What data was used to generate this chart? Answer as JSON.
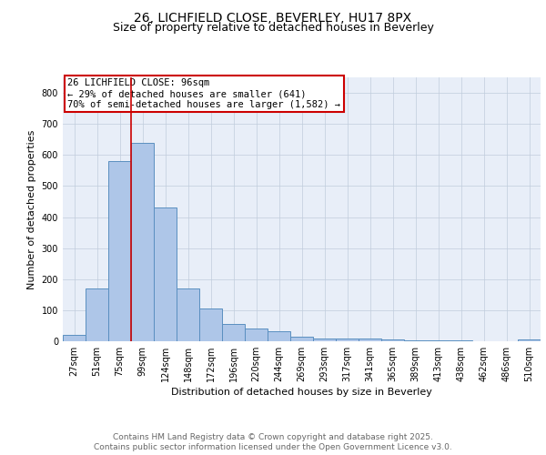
{
  "title1": "26, LICHFIELD CLOSE, BEVERLEY, HU17 8PX",
  "title2": "Size of property relative to detached houses in Beverley",
  "xlabel": "Distribution of detached houses by size in Beverley",
  "ylabel": "Number of detached properties",
  "bar_labels": [
    "27sqm",
    "51sqm",
    "75sqm",
    "99sqm",
    "124sqm",
    "148sqm",
    "172sqm",
    "196sqm",
    "220sqm",
    "244sqm",
    "269sqm",
    "293sqm",
    "317sqm",
    "341sqm",
    "365sqm",
    "389sqm",
    "413sqm",
    "438sqm",
    "462sqm",
    "486sqm",
    "510sqm"
  ],
  "bar_values": [
    20,
    170,
    580,
    640,
    430,
    170,
    105,
    57,
    42,
    33,
    15,
    10,
    9,
    8,
    6,
    4,
    3,
    2,
    1,
    1,
    6
  ],
  "bar_color": "#aec6e8",
  "bar_edge_color": "#5a8fc0",
  "vline_x": 2.5,
  "vline_color": "#cc0000",
  "annotation_line1": "26 LICHFIELD CLOSE: 96sqm",
  "annotation_line2": "← 29% of detached houses are smaller (641)",
  "annotation_line3": "70% of semi-detached houses are larger (1,582) →",
  "annotation_box_color": "#ffffff",
  "annotation_box_edge_color": "#cc0000",
  "ylim": [
    0,
    850
  ],
  "yticks": [
    0,
    100,
    200,
    300,
    400,
    500,
    600,
    700,
    800
  ],
  "bg_color": "#e8eef8",
  "footer_line1": "Contains HM Land Registry data © Crown copyright and database right 2025.",
  "footer_line2": "Contains public sector information licensed under the Open Government Licence v3.0.",
  "title_fontsize": 10,
  "title2_fontsize": 9,
  "axis_label_fontsize": 8,
  "tick_fontsize": 7,
  "annotation_fontsize": 7.5,
  "footer_fontsize": 6.5
}
